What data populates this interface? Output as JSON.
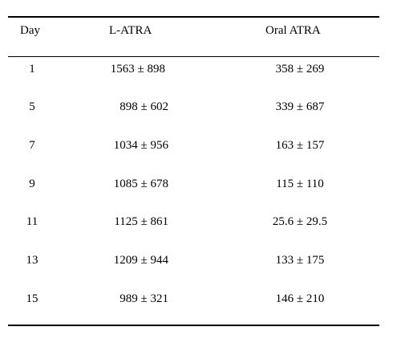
{
  "table": {
    "headers": {
      "day": "Day",
      "l_atra": "L-ATRA",
      "oral_atra": "Oral ATRA"
    },
    "rows": [
      {
        "day": "1",
        "l_atra": "1563 ± 898",
        "oral_atra": "358 ± 269"
      },
      {
        "day": "5",
        "l_atra": "898 ± 602",
        "oral_atra": "339 ± 687"
      },
      {
        "day": "7",
        "l_atra": "1034 ± 956",
        "oral_atra": "163 ± 157"
      },
      {
        "day": "9",
        "l_atra": "1085 ± 678",
        "oral_atra": "115 ± 110"
      },
      {
        "day": "11",
        "l_atra": "1125 ± 861",
        "oral_atra": "25.6 ± 29.5"
      },
      {
        "day": "13",
        "l_atra": "1209 ± 944",
        "oral_atra": "133 ± 175"
      },
      {
        "day": "15",
        "l_atra": "989 ± 321",
        "oral_atra": "146 ± 210"
      }
    ]
  }
}
